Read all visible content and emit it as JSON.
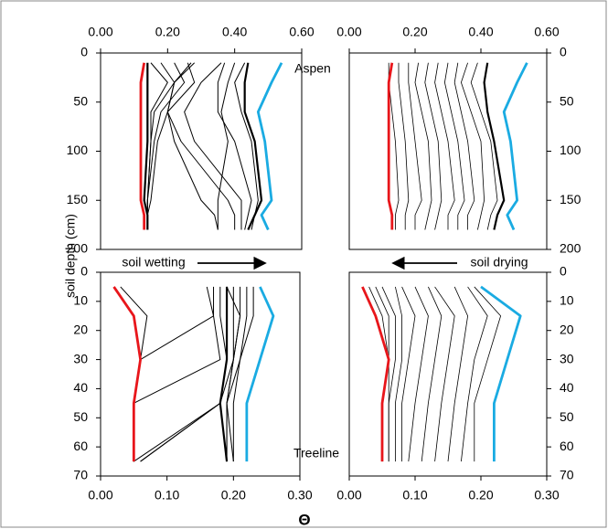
{
  "figure": {
    "ylabel": "soil depth (cm)",
    "xlabel": "Θ",
    "annotations": [
      "Aspen",
      "soil wetting",
      "soil drying",
      "Treeline"
    ]
  },
  "chart_data": [
    {
      "type": "line",
      "xaxis_position": "top",
      "yaxis_side": "left",
      "y": [
        10,
        30,
        60,
        90,
        150,
        165,
        180
      ],
      "ylim": [
        0,
        200
      ],
      "yticks": [
        0,
        50,
        100,
        150,
        200
      ],
      "xlim": [
        0,
        0.6
      ],
      "xticks": [
        {
          "value": 0,
          "label": "0.00"
        },
        {
          "value": 0.2,
          "label": "0.20"
        },
        {
          "value": 0.4,
          "label": "0.40"
        },
        {
          "value": 0.6,
          "label": "0.60"
        }
      ],
      "series": [
        {
          "color": "#000000",
          "width": 1,
          "values": [
            0.15,
            0.2,
            0.15,
            0.15,
            0.14,
            0.14,
            0.14
          ]
        },
        {
          "color": "#000000",
          "width": 1,
          "values": [
            0.18,
            0.22,
            0.16,
            0.15,
            0.14,
            0.14,
            0.14
          ]
        },
        {
          "color": "#000000",
          "width": 1,
          "values": [
            0.22,
            0.25,
            0.18,
            0.16,
            0.14,
            0.14,
            0.14
          ]
        },
        {
          "color": "#000000",
          "width": 1,
          "values": [
            0.26,
            0.28,
            0.2,
            0.17,
            0.15,
            0.14,
            0.14
          ]
        },
        {
          "color": "#000000",
          "width": 1,
          "values": [
            0.28,
            0.22,
            0.2,
            0.22,
            0.3,
            0.34,
            0.35
          ]
        },
        {
          "color": "#000000",
          "width": 1,
          "values": [
            0.27,
            0.22,
            0.2,
            0.24,
            0.38,
            0.4,
            0.4
          ]
        },
        {
          "color": "#000000",
          "width": 1,
          "values": [
            0.36,
            0.3,
            0.25,
            0.28,
            0.42,
            0.42,
            0.42
          ]
        },
        {
          "color": "#000000",
          "width": 1,
          "values": [
            0.37,
            0.35,
            0.35,
            0.4,
            0.45,
            0.44,
            0.43
          ]
        },
        {
          "color": "#000000",
          "width": 1,
          "values": [
            0.43,
            0.4,
            0.42,
            0.45,
            0.47,
            0.46,
            0.45
          ]
        },
        {
          "color": "#000000",
          "width": 1,
          "values": [
            0.4,
            0.38,
            0.36,
            0.38,
            0.35,
            0.35,
            0.35
          ]
        },
        {
          "color": "#000000",
          "width": 2.2,
          "values": [
            0.14,
            0.14,
            0.14,
            0.14,
            0.13,
            0.14,
            0.14
          ]
        },
        {
          "color": "#000000",
          "width": 2.2,
          "values": [
            0.44,
            0.43,
            0.43,
            0.46,
            0.48,
            0.46,
            0.44
          ]
        },
        {
          "color": "#e8161b",
          "width": 2.8,
          "values": [
            0.13,
            0.12,
            0.12,
            0.12,
            0.12,
            0.13,
            0.13
          ]
        },
        {
          "color": "#1aabe2",
          "width": 2.8,
          "values": [
            0.54,
            0.51,
            0.47,
            0.49,
            0.51,
            0.48,
            0.5
          ]
        }
      ]
    },
    {
      "type": "line",
      "xaxis_position": "top",
      "yaxis_side": "right",
      "y": [
        10,
        30,
        60,
        90,
        150,
        165,
        180
      ],
      "ylim": [
        0,
        200
      ],
      "yticks": [
        0,
        50,
        100,
        150,
        200
      ],
      "xlim": [
        0,
        0.6
      ],
      "xticks": [
        {
          "value": 0,
          "label": "0.00"
        },
        {
          "value": 0.2,
          "label": "0.20"
        },
        {
          "value": 0.4,
          "label": "0.40"
        },
        {
          "value": 0.6,
          "label": "0.60"
        }
      ],
      "series": [
        {
          "color": "#000000",
          "width": 0.8,
          "values": [
            0.12,
            0.12,
            0.13,
            0.14,
            0.15,
            0.14,
            0.14
          ]
        },
        {
          "color": "#000000",
          "width": 0.8,
          "values": [
            0.15,
            0.15,
            0.16,
            0.17,
            0.18,
            0.17,
            0.17
          ]
        },
        {
          "color": "#000000",
          "width": 0.8,
          "values": [
            0.18,
            0.18,
            0.19,
            0.2,
            0.22,
            0.2,
            0.2
          ]
        },
        {
          "color": "#000000",
          "width": 0.8,
          "values": [
            0.21,
            0.2,
            0.22,
            0.24,
            0.25,
            0.24,
            0.23
          ]
        },
        {
          "color": "#000000",
          "width": 0.8,
          "values": [
            0.24,
            0.23,
            0.25,
            0.27,
            0.28,
            0.27,
            0.26
          ]
        },
        {
          "color": "#000000",
          "width": 0.8,
          "values": [
            0.27,
            0.26,
            0.28,
            0.3,
            0.32,
            0.3,
            0.3
          ]
        },
        {
          "color": "#000000",
          "width": 0.8,
          "values": [
            0.3,
            0.29,
            0.31,
            0.33,
            0.35,
            0.33,
            0.33
          ]
        },
        {
          "color": "#000000",
          "width": 0.8,
          "values": [
            0.33,
            0.32,
            0.34,
            0.36,
            0.38,
            0.36,
            0.36
          ]
        },
        {
          "color": "#000000",
          "width": 0.8,
          "values": [
            0.36,
            0.34,
            0.37,
            0.4,
            0.41,
            0.4,
            0.39
          ]
        },
        {
          "color": "#000000",
          "width": 0.8,
          "values": [
            0.39,
            0.37,
            0.4,
            0.43,
            0.45,
            0.43,
            0.42
          ]
        },
        {
          "color": "#000000",
          "width": 2.2,
          "values": [
            0.42,
            0.41,
            0.42,
            0.44,
            0.47,
            0.45,
            0.44
          ]
        },
        {
          "color": "#e8161b",
          "width": 2.8,
          "values": [
            0.13,
            0.12,
            0.12,
            0.12,
            0.12,
            0.13,
            0.13
          ]
        },
        {
          "color": "#1aabe2",
          "width": 2.8,
          "values": [
            0.54,
            0.51,
            0.47,
            0.49,
            0.51,
            0.48,
            0.5
          ]
        }
      ]
    },
    {
      "type": "line",
      "xaxis_position": "bottom",
      "yaxis_side": "left",
      "y": [
        5,
        15,
        30,
        45,
        65
      ],
      "ylim": [
        0,
        70
      ],
      "yticks": [
        0,
        10,
        20,
        30,
        40,
        50,
        60,
        70
      ],
      "xlim": [
        0,
        0.3
      ],
      "xticks": [
        {
          "value": 0,
          "label": "0.00"
        },
        {
          "value": 0.1,
          "label": "0.10"
        },
        {
          "value": 0.2,
          "label": "0.20"
        },
        {
          "value": 0.3,
          "label": "0.30"
        }
      ],
      "series": [
        {
          "color": "#000000",
          "width": 1,
          "values": [
            0.03,
            0.07,
            0.06,
            0.05,
            0.05
          ]
        },
        {
          "color": "#000000",
          "width": 1,
          "values": [
            0.16,
            0.17,
            0.06,
            0.05,
            0.05
          ]
        },
        {
          "color": "#000000",
          "width": 1,
          "values": [
            0.17,
            0.17,
            0.18,
            0.05,
            0.05
          ]
        },
        {
          "color": "#000000",
          "width": 1,
          "values": [
            0.18,
            0.18,
            0.19,
            0.18,
            0.05
          ]
        },
        {
          "color": "#000000",
          "width": 1,
          "values": [
            0.19,
            0.19,
            0.19,
            0.18,
            0.06
          ]
        },
        {
          "color": "#000000",
          "width": 1,
          "values": [
            0.2,
            0.2,
            0.2,
            0.19,
            0.19
          ]
        },
        {
          "color": "#000000",
          "width": 1,
          "values": [
            0.21,
            0.21,
            0.2,
            0.19,
            0.19
          ]
        },
        {
          "color": "#000000",
          "width": 1,
          "values": [
            0.22,
            0.22,
            0.21,
            0.19,
            0.2
          ]
        },
        {
          "color": "#000000",
          "width": 1,
          "values": [
            0.23,
            0.23,
            0.21,
            0.2,
            0.2
          ]
        },
        {
          "color": "#000000",
          "width": 1,
          "values": [
            0.19,
            0.21,
            0.2,
            0.18,
            0.06
          ]
        },
        {
          "color": "#000000",
          "width": 2.2,
          "values": [
            0.19,
            0.19,
            0.19,
            0.18,
            0.19
          ]
        },
        {
          "color": "#e8161b",
          "width": 2.8,
          "values": [
            0.02,
            0.05,
            0.06,
            0.05,
            0.05
          ]
        },
        {
          "color": "#1aabe2",
          "width": 2.8,
          "values": [
            0.24,
            0.26,
            0.24,
            0.22,
            0.22
          ]
        }
      ]
    },
    {
      "type": "line",
      "xaxis_position": "bottom",
      "yaxis_side": "right",
      "y": [
        5,
        15,
        30,
        45,
        65
      ],
      "ylim": [
        0,
        70
      ],
      "yticks": [
        0,
        10,
        20,
        30,
        40,
        50,
        60,
        70
      ],
      "xlim": [
        0,
        0.3
      ],
      "xticks": [
        {
          "value": 0,
          "label": "0.00"
        },
        {
          "value": 0.1,
          "label": "0.10"
        },
        {
          "value": 0.2,
          "label": "0.20"
        },
        {
          "value": 0.3,
          "label": "0.30"
        }
      ],
      "series": [
        {
          "color": "#000000",
          "width": 0.8,
          "values": [
            0.03,
            0.05,
            0.06,
            0.05,
            0.05
          ]
        },
        {
          "color": "#000000",
          "width": 0.8,
          "values": [
            0.04,
            0.06,
            0.06,
            0.06,
            0.06
          ]
        },
        {
          "color": "#000000",
          "width": 0.8,
          "values": [
            0.05,
            0.07,
            0.07,
            0.06,
            0.06
          ]
        },
        {
          "color": "#000000",
          "width": 0.8,
          "values": [
            0.07,
            0.08,
            0.08,
            0.07,
            0.07
          ]
        },
        {
          "color": "#000000",
          "width": 0.8,
          "values": [
            0.08,
            0.1,
            0.09,
            0.08,
            0.08
          ]
        },
        {
          "color": "#000000",
          "width": 0.8,
          "values": [
            0.1,
            0.12,
            0.11,
            0.1,
            0.09
          ]
        },
        {
          "color": "#000000",
          "width": 0.8,
          "values": [
            0.12,
            0.14,
            0.13,
            0.12,
            0.11
          ]
        },
        {
          "color": "#000000",
          "width": 0.8,
          "values": [
            0.13,
            0.16,
            0.15,
            0.14,
            0.13
          ]
        },
        {
          "color": "#000000",
          "width": 0.8,
          "values": [
            0.16,
            0.18,
            0.17,
            0.16,
            0.15
          ]
        },
        {
          "color": "#000000",
          "width": 0.8,
          "values": [
            0.18,
            0.21,
            0.19,
            0.18,
            0.17
          ]
        },
        {
          "color": "#000000",
          "width": 0.8,
          "values": [
            0.19,
            0.23,
            0.21,
            0.19,
            0.19
          ]
        },
        {
          "color": "#e8161b",
          "width": 2.8,
          "values": [
            0.02,
            0.04,
            0.06,
            0.05,
            0.05
          ]
        },
        {
          "color": "#1aabe2",
          "width": 2.8,
          "values": [
            0.2,
            0.26,
            0.24,
            0.22,
            0.22
          ]
        }
      ]
    }
  ]
}
